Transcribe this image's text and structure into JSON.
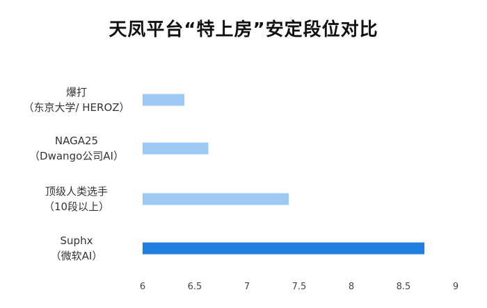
{
  "chart_data": {
    "type": "bar",
    "orientation": "horizontal",
    "title": "天凤平台“特上房”安定段位对比",
    "categories": [
      [
        "爆打",
        "（东京大学/ HEROZ）"
      ],
      [
        "NAGA25",
        "（Dwango公司AI）"
      ],
      [
        "顶级人类选手",
        "（10段以上）"
      ],
      [
        "Suphx",
        "（微软AI）"
      ]
    ],
    "values": [
      6.4,
      6.63,
      7.4,
      8.7
    ],
    "bar_colors": [
      "#9ec9f5",
      "#9ec9f5",
      "#9ec9f5",
      "#1f7ee0"
    ],
    "xlim": [
      6,
      9
    ],
    "xticks": [
      "6",
      "6.5",
      "7",
      "7.5",
      "8",
      "8.5",
      "9"
    ],
    "grid": false,
    "legend": "none"
  }
}
